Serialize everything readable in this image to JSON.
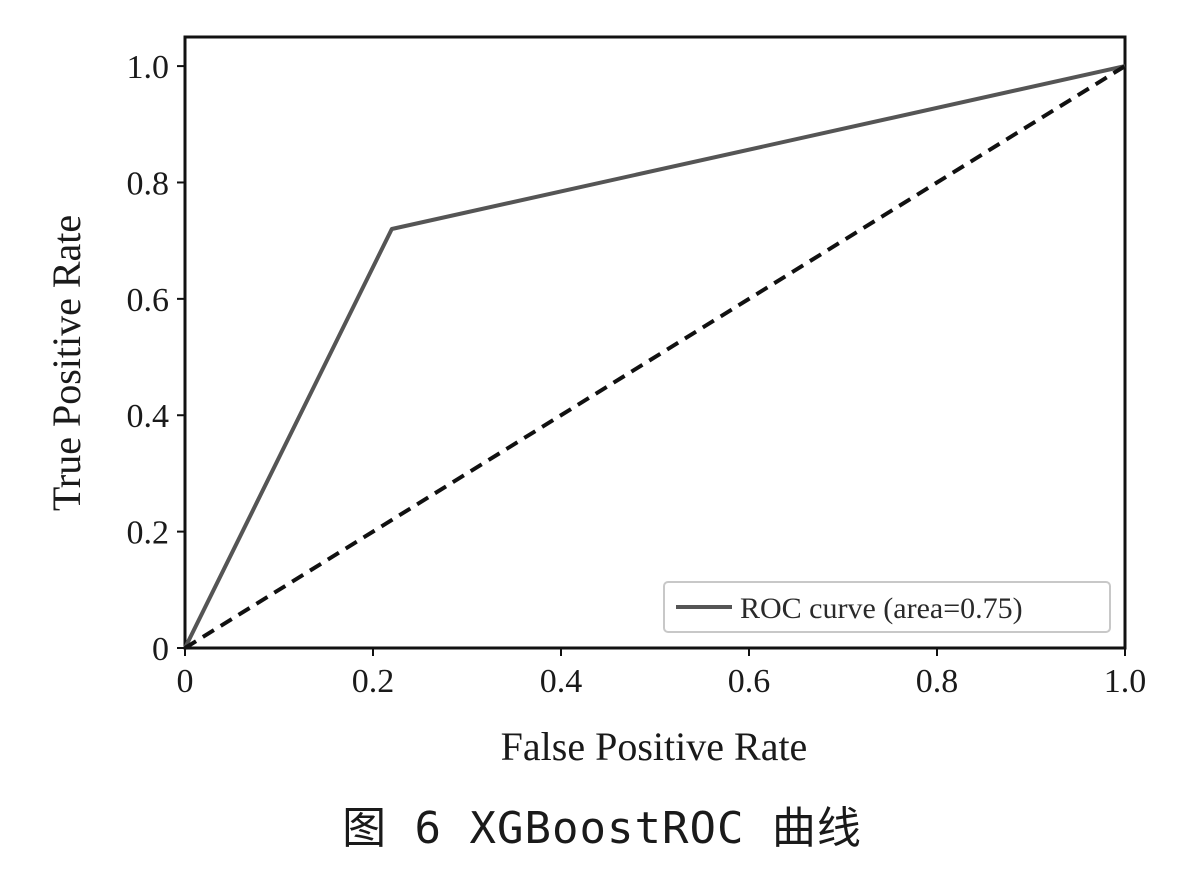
{
  "caption": "图 6   XGBoostROC 曲线",
  "chart_data": {
    "type": "line",
    "title": "",
    "xlabel": "False Positive Rate",
    "ylabel": "True Positive Rate",
    "xlim": [
      0,
      1.0
    ],
    "ylim": [
      0,
      1.05
    ],
    "x_ticks": [
      "0",
      "0.2",
      "0.4",
      "0.6",
      "0.8",
      "1.0"
    ],
    "y_ticks": [
      "0",
      "0.2",
      "0.4",
      "0.6",
      "0.8",
      "1.0"
    ],
    "grid": false,
    "legend_position": "bottom-right",
    "series": [
      {
        "name": "ROC curve (area=0.75)",
        "x": [
          0,
          0.22,
          1.0
        ],
        "y": [
          0,
          0.72,
          1.0
        ],
        "style": "solid",
        "color": "#555555"
      },
      {
        "x": [
          0,
          1.0
        ],
        "y": [
          0,
          1.0
        ],
        "style": "dashed",
        "color": "#111111"
      }
    ]
  }
}
